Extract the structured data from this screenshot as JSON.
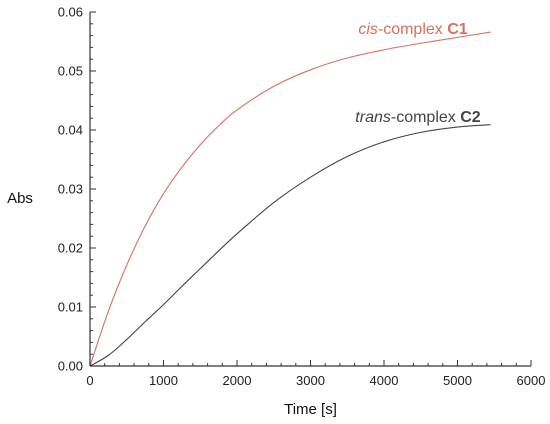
{
  "chart_data": {
    "type": "line",
    "title": "",
    "xlabel": "Time [s]",
    "ylabel": "Abs",
    "xlim": [
      0,
      6000
    ],
    "ylim": [
      0,
      0.06
    ],
    "xticks": [
      "0",
      "1000",
      "2000",
      "3000",
      "4000",
      "5000",
      "6000"
    ],
    "yticks": [
      "0.00",
      "0.01",
      "0.02",
      "0.03",
      "0.04",
      "0.05",
      "0.06"
    ],
    "grid": false,
    "legend": "none",
    "series": [
      {
        "label_prefix": "cis",
        "label_middle": "-complex ",
        "label_code": "C1",
        "color": "#d8705a",
        "x": [
          0,
          250,
          500,
          750,
          1000,
          1250,
          1500,
          1750,
          2000,
          2500,
          3000,
          3500,
          4000,
          4500,
          5000,
          5450
        ],
        "y": [
          0.0,
          0.0093,
          0.0171,
          0.0237,
          0.0292,
          0.0337,
          0.0375,
          0.0407,
          0.0434,
          0.0474,
          0.0502,
          0.0522,
          0.0536,
          0.0547,
          0.0557,
          0.0566
        ]
      },
      {
        "label_prefix": "trans",
        "label_middle": "-complex ",
        "label_code": "C2",
        "color": "#444444",
        "x": [
          0,
          250,
          500,
          750,
          1000,
          1250,
          1500,
          1750,
          2000,
          2500,
          3000,
          3500,
          4000,
          4500,
          5000,
          5450
        ],
        "y": [
          0.0,
          0.0018,
          0.0045,
          0.0075,
          0.0104,
          0.0135,
          0.0165,
          0.0195,
          0.0224,
          0.0277,
          0.032,
          0.0355,
          0.038,
          0.0396,
          0.0405,
          0.0409
        ]
      }
    ]
  }
}
